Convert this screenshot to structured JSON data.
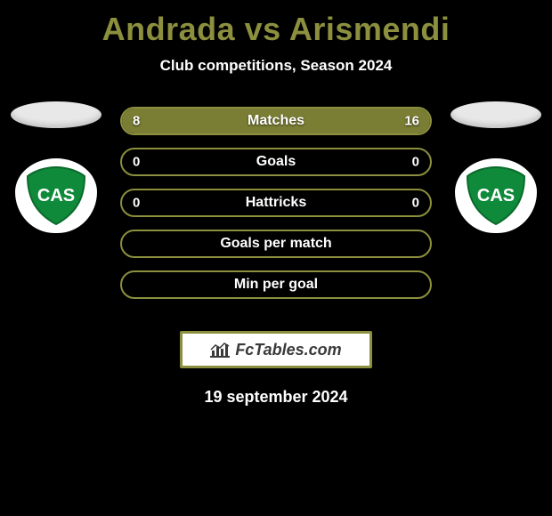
{
  "title": "Andrada vs Arismendi",
  "subtitle": "Club competitions, Season 2024",
  "title_color": "#8b8f3e",
  "text_color": "#ffffff",
  "background_color": "#000000",
  "left": {
    "ellipse_color": "#e8e8e8",
    "club_code": "CAS",
    "shield_bg": "#ffffff",
    "shield_fill": "#0f8a3a",
    "shield_text_color": "#ffffff"
  },
  "right": {
    "ellipse_color": "#e8e8e8",
    "club_code": "CAS",
    "shield_bg": "#ffffff",
    "shield_fill": "#0f8a3a",
    "shield_text_color": "#ffffff"
  },
  "bar_styles": {
    "border_color": "#8b8f3e",
    "fill_color": "#7a7d34",
    "label_color": "#ffffff",
    "value_color": "#ffffff",
    "height": 32,
    "radius": 16,
    "font_size": 16
  },
  "bars": [
    {
      "label": "Matches",
      "left": "8",
      "right": "16",
      "left_num": 8,
      "right_num": 16,
      "max": 24
    },
    {
      "label": "Goals",
      "left": "0",
      "right": "0",
      "left_num": 0,
      "right_num": 0,
      "max": 1
    },
    {
      "label": "Hattricks",
      "left": "0",
      "right": "0",
      "left_num": 0,
      "right_num": 0,
      "max": 1
    },
    {
      "label": "Goals per match",
      "left": "",
      "right": "",
      "left_num": 0,
      "right_num": 0,
      "max": 1
    },
    {
      "label": "Min per goal",
      "left": "",
      "right": "",
      "left_num": 0,
      "right_num": 0,
      "max": 1
    }
  ],
  "brand": {
    "text": "FcTables.com",
    "border_color": "#8b8f3e",
    "bg": "#ffffff",
    "text_color": "#3a3a3a",
    "icon_color": "#3a3a3a"
  },
  "date": "19 september 2024"
}
